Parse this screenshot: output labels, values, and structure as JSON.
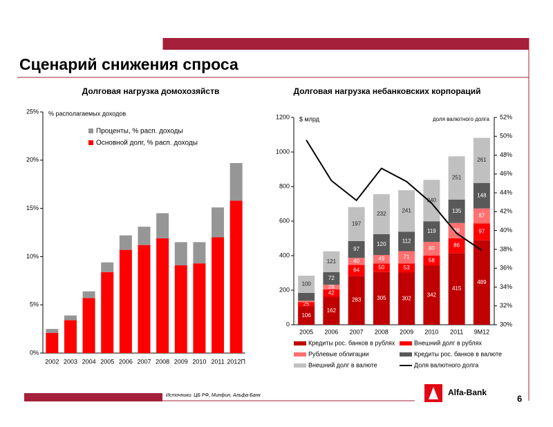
{
  "header": {
    "title": "Сценарий снижения спроса"
  },
  "footer": {
    "source": "Источники: ЦБ РФ, Минфин, Альфа-Банк",
    "page": "6",
    "logo": "Alfa-Bank"
  },
  "chart_data": [
    {
      "type": "bar",
      "stacked": true,
      "title": "Долговая нагрузка домохозяйств",
      "ylabel": "% располагаемых доходов",
      "categories": [
        "2002",
        "2003",
        "2004",
        "2005",
        "2006",
        "2007",
        "2008",
        "2009",
        "2010",
        "2011",
        "2012П"
      ],
      "series": [
        {
          "name": "Основной долг, % расп. доходы",
          "color": "#ff0000",
          "values": [
            2.1,
            3.4,
            5.7,
            8.4,
            10.7,
            11.2,
            11.9,
            9.1,
            9.3,
            12.0,
            15.8
          ]
        },
        {
          "name": "Проценты, % расп. доходы",
          "color": "#969696",
          "values": [
            0.4,
            0.5,
            0.7,
            1.0,
            1.5,
            1.9,
            2.6,
            2.4,
            2.2,
            3.1,
            3.9
          ]
        }
      ],
      "ylim": [
        0,
        25
      ],
      "yticks": [
        {
          "value": 0,
          "label": "0%"
        },
        {
          "value": 5,
          "label": "5%"
        },
        {
          "value": 10,
          "label": "10%"
        },
        {
          "value": 15,
          "label": "15%"
        },
        {
          "value": 20,
          "label": "20%"
        },
        {
          "value": 25,
          "label": "25%"
        }
      ],
      "legend": "upper-left",
      "grid": false
    },
    {
      "type": "bar",
      "stacked": true,
      "title": "Долговая нагрузка небанковских корпораций",
      "ylabel": "$ млрд",
      "y2label": "доля валютного долга",
      "categories": [
        "2005",
        "2006",
        "2007",
        "2008",
        "2009",
        "2010",
        "2011",
        "9М12"
      ],
      "series": [
        {
          "name": "Кредиты рос. банков в рублях",
          "color": "#c00000",
          "values": [
            106,
            162,
            283,
            305,
            302,
            342,
            415,
            489
          ]
        },
        {
          "name": "Внешний долг в рублях",
          "color": "#ff0000",
          "values": [
            25,
            42,
            64,
            50,
            53,
            58,
            86,
            97
          ]
        },
        {
          "name": "Рублевые облигации",
          "color": "#ff7070",
          "values": [
            8,
            28,
            40,
            49,
            71,
            80,
            88,
            87
          ],
          "value_labels": [
            null,
            "28",
            "40",
            "49",
            "71",
            "80",
            "88",
            "87"
          ]
        },
        {
          "name": "Кредиты рос. банков в валюте",
          "color": "#595959",
          "values": [
            45,
            72,
            97,
            120,
            112,
            119,
            135,
            148
          ],
          "value_labels": [
            null,
            "72",
            "97",
            "120",
            "112",
            "119",
            "135",
            "148"
          ]
        },
        {
          "name": "Внешний долг в валюте",
          "color": "#c0c0c0",
          "values": [
            100,
            121,
            197,
            232,
            241,
            240,
            251,
            261
          ]
        },
        {
          "name": "Доля валютного долга",
          "type": "line",
          "axis": "y2",
          "color": "#000000",
          "values": [
            49.6,
            45.3,
            43.2,
            46.6,
            45.2,
            42.9,
            39.7,
            37.9
          ]
        }
      ],
      "ylim": [
        0,
        1200
      ],
      "yticks": [
        0,
        200,
        400,
        600,
        800,
        1000,
        1200
      ],
      "y2lim": [
        30,
        52
      ],
      "y2ticks": [
        {
          "value": 30,
          "label": "30%"
        },
        {
          "value": 32,
          "label": "32%"
        },
        {
          "value": 34,
          "label": "34%"
        },
        {
          "value": 36,
          "label": "36%"
        },
        {
          "value": 38,
          "label": "38%"
        },
        {
          "value": 40,
          "label": "40%"
        },
        {
          "value": 42,
          "label": "42%"
        },
        {
          "value": 44,
          "label": "44%"
        },
        {
          "value": 46,
          "label": "46%"
        },
        {
          "value": 48,
          "label": "48%"
        },
        {
          "value": 50,
          "label": "50%"
        },
        {
          "value": 52,
          "label": "52%"
        }
      ],
      "legend": "bottom",
      "grid": false
    }
  ]
}
